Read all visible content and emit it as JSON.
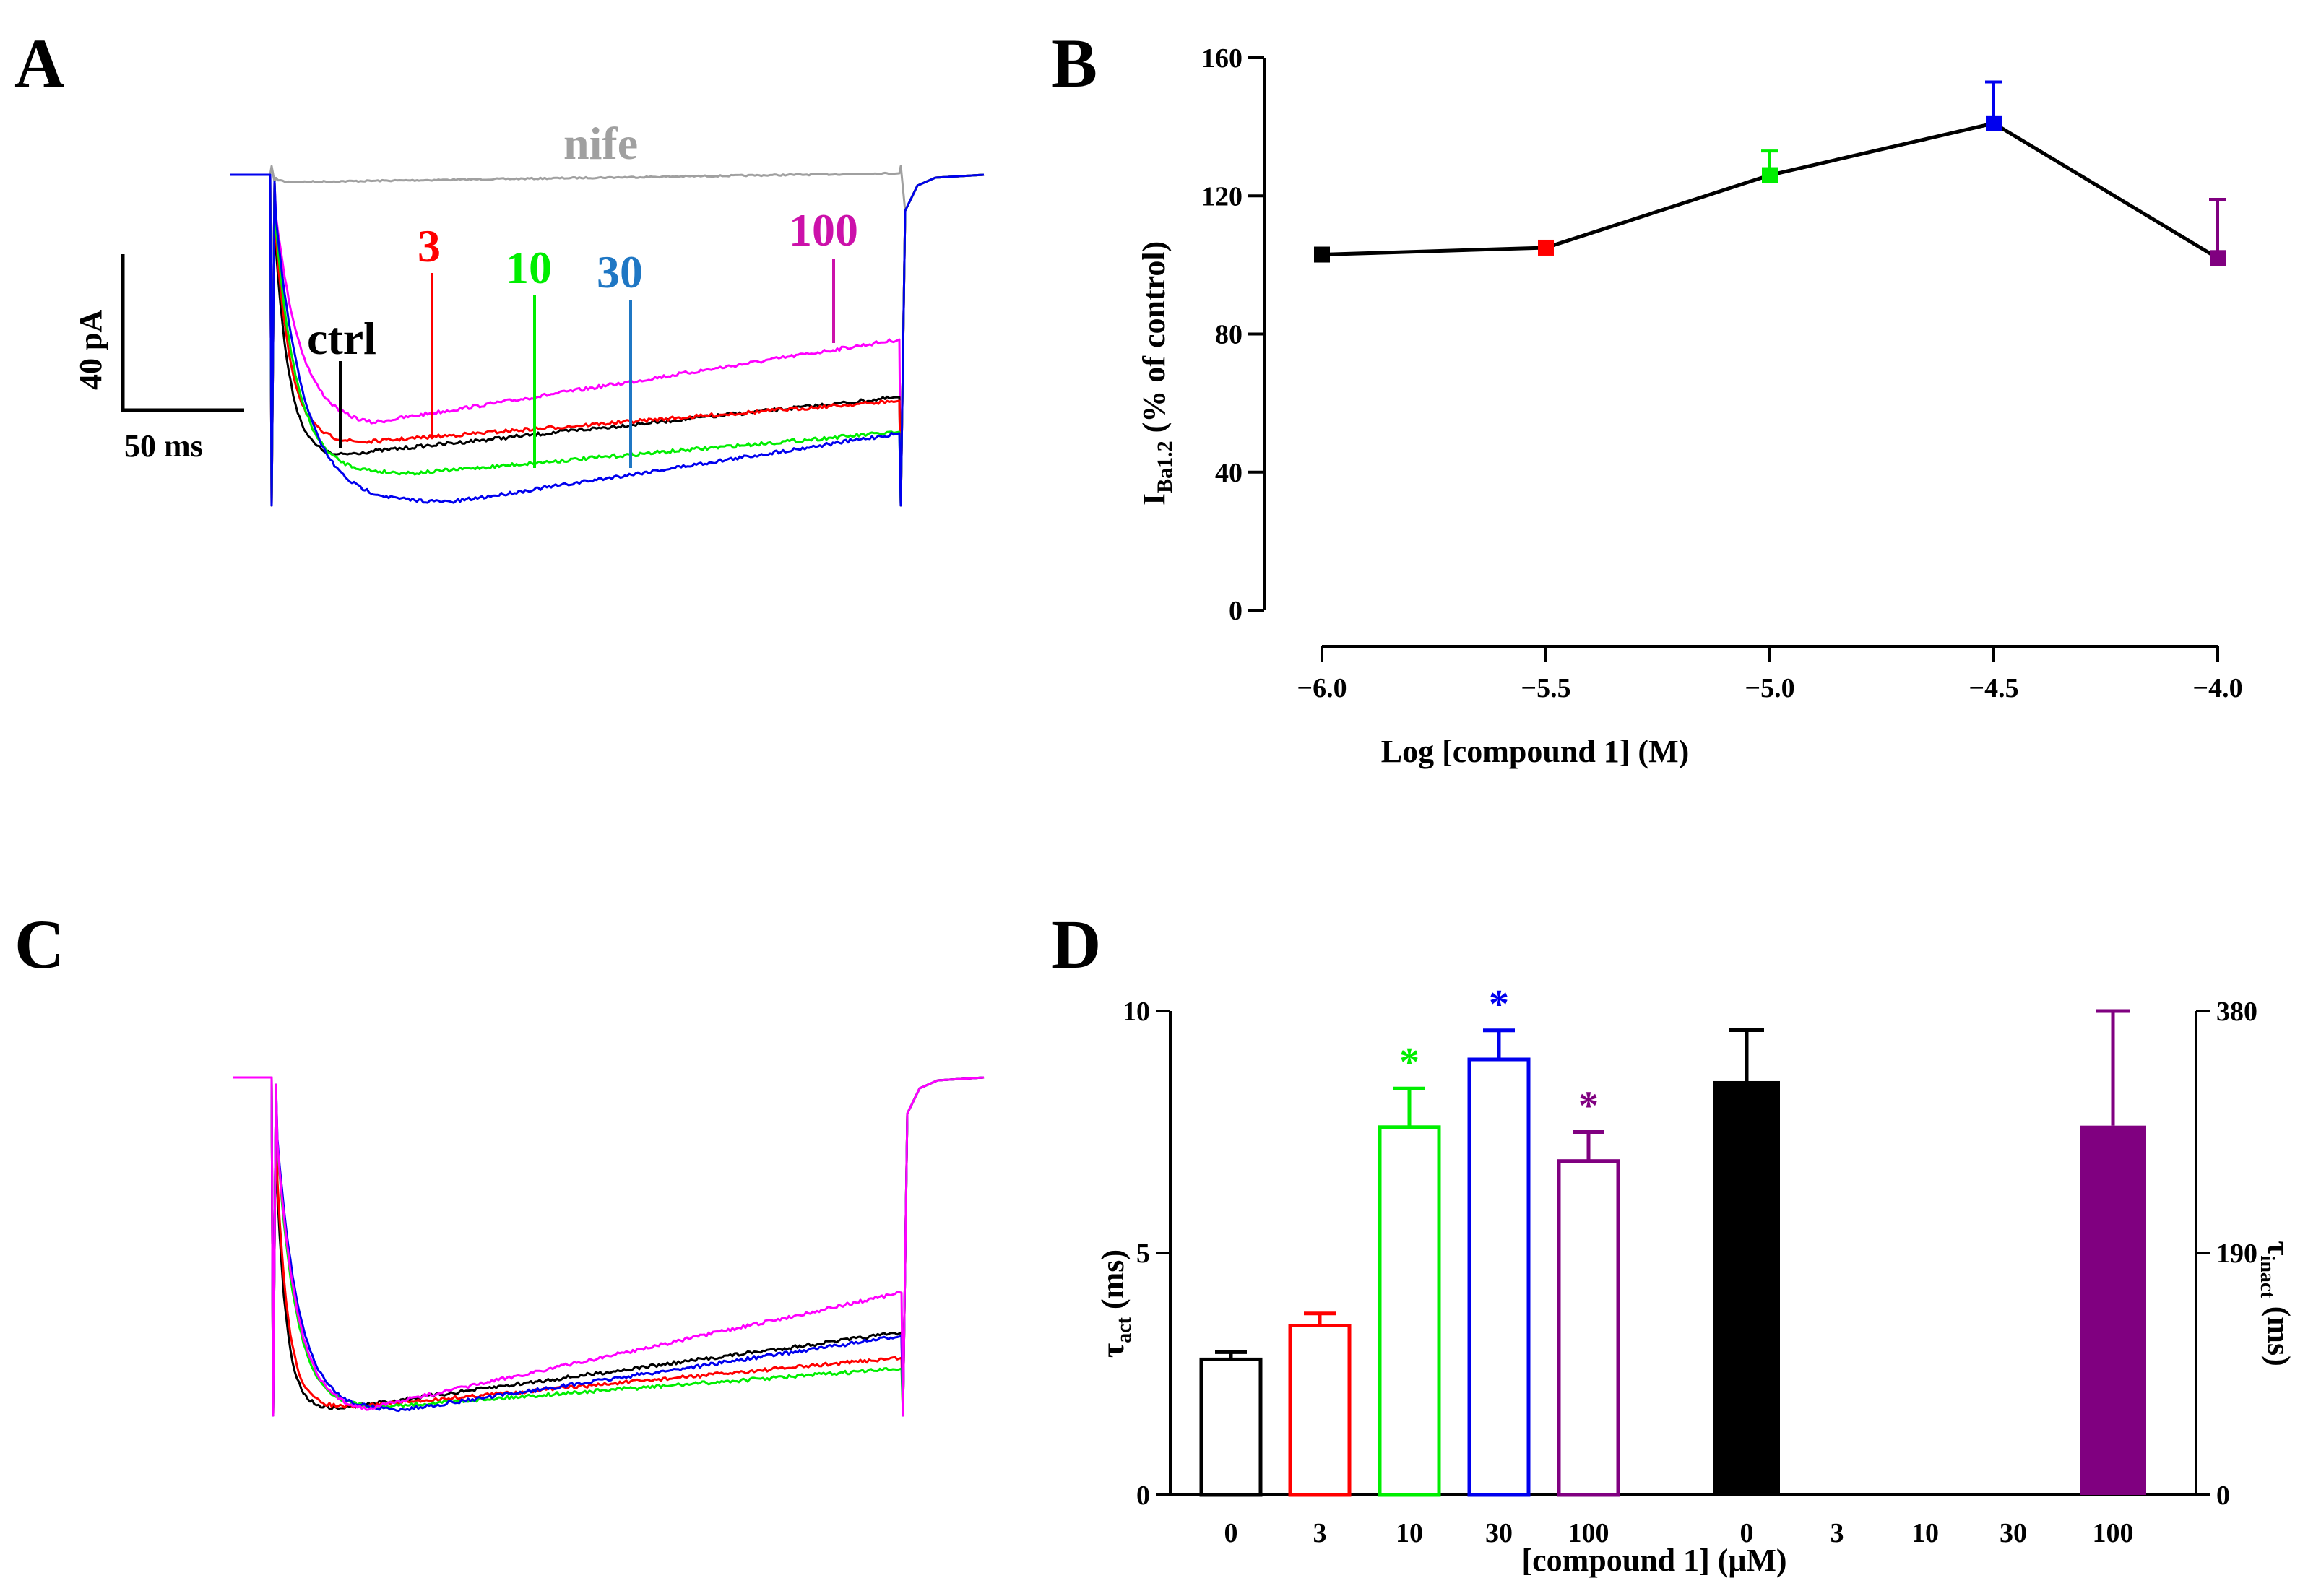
{
  "colors": {
    "ctrl": "#000000",
    "c3": "#ff0000",
    "c10": "#00ee00",
    "c30": "#0000ee",
    "c100": "#ff00ff",
    "purple": "#800080",
    "nife": "#a0a0a0",
    "label30": "#1f77c4",
    "label100": "#cc11aa"
  },
  "panelA": {
    "letter": "A",
    "labels": {
      "nife": "nife",
      "ctrl": "ctrl",
      "c3": "3",
      "c10": "10",
      "c30": "30",
      "c100": "100"
    },
    "scale": {
      "current": "40 pA",
      "time": "50 ms"
    }
  },
  "panelB": {
    "letter": "B",
    "chart_data": {
      "type": "line",
      "x": [
        -6.0,
        -5.5,
        -5.0,
        -4.5,
        -4.0
      ],
      "xticks": [
        "−6.0",
        "−5.5",
        "−5.0",
        "−4.5",
        "−4.0"
      ],
      "y": [
        103,
        105,
        126,
        141,
        102
      ],
      "err": [
        0,
        0,
        7,
        12,
        17
      ],
      "yticks": [
        0,
        40,
        80,
        120,
        160
      ],
      "ylim": [
        0,
        160
      ],
      "xlabel": "Log [compound 1] (M)",
      "ylabel_main": "I",
      "ylabel_sub": "Ba1.2",
      "ylabel_rest": " (% of control)"
    }
  },
  "panelC": {
    "letter": "C"
  },
  "panelD": {
    "letter": "D",
    "chart_data": {
      "type": "bar",
      "categories": [
        "0",
        "3",
        "10",
        "30",
        "100",
        "0",
        "3",
        "10",
        "30",
        "100"
      ],
      "tau_act": {
        "axis": "left",
        "ylim": [
          0,
          10
        ],
        "yticks": [
          "0",
          "5",
          "10"
        ],
        "values": [
          2.8,
          3.5,
          7.6,
          9.0,
          6.9
        ],
        "err": [
          0.15,
          0.25,
          0.8,
          0.6,
          0.6
        ],
        "significant": [
          false,
          false,
          true,
          true,
          true
        ]
      },
      "tau_inact": {
        "axis": "right",
        "ylim": [
          0,
          380
        ],
        "yticks": [
          "0",
          "190",
          "380"
        ],
        "values": [
          325,
          null,
          null,
          null,
          290
        ],
        "err": [
          40,
          null,
          null,
          null,
          90
        ]
      },
      "star": "*",
      "xlabel": "[compound 1] (μM)",
      "ylabel_left": "τ",
      "ylabel_left_sub": "act",
      "ylabel_left_rest": " (ms)",
      "ylabel_right": "τ",
      "ylabel_right_sub": "inact",
      "ylabel_right_rest": " (ms)"
    }
  }
}
